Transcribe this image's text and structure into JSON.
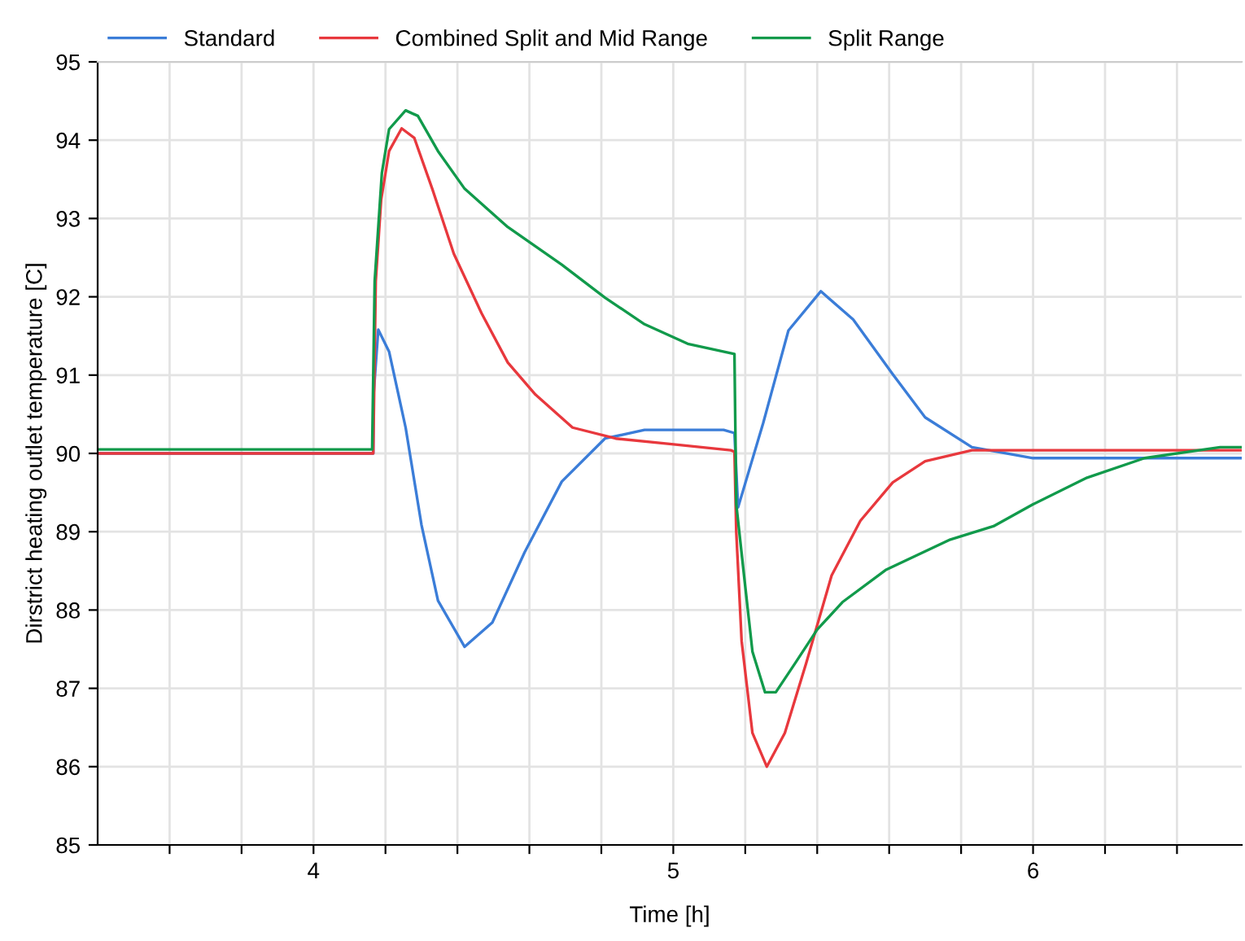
{
  "chart_data": {
    "type": "line",
    "xlabel": "Time [h]",
    "ylabel": "Dirstrict heating outlet temperature [C]",
    "xlim": [
      3.4,
      6.58
    ],
    "ylim": [
      85,
      95
    ],
    "xticks": [
      {
        "value": 3.6,
        "label": null
      },
      {
        "value": 3.8,
        "label": null
      },
      4,
      {
        "value": 4.2,
        "label": null
      },
      {
        "value": 4.4,
        "label": null
      },
      {
        "value": 4.6,
        "label": null
      },
      {
        "value": 4.8,
        "label": null
      },
      5,
      {
        "value": 5.2,
        "label": null
      },
      {
        "value": 5.4,
        "label": null
      },
      {
        "value": 5.6,
        "label": null
      },
      {
        "value": 5.8,
        "label": null
      },
      6,
      {
        "value": 6.2,
        "label": null
      },
      {
        "value": 6.4,
        "label": null
      }
    ],
    "yticks": [
      85,
      86,
      87,
      88,
      89,
      90,
      91,
      92,
      93,
      94,
      95
    ],
    "grid": true,
    "legend": "top",
    "line_style": "solid",
    "series": [
      {
        "name": "Standard",
        "color": "#3b7dd8",
        "x": [
          3.4,
          4.166,
          4.167,
          4.18,
          4.21,
          4.256,
          4.3,
          4.346,
          4.42,
          4.497,
          4.587,
          4.69,
          4.81,
          4.92,
          5.14,
          5.17,
          5.18,
          5.25,
          5.32,
          5.41,
          5.5,
          5.61,
          5.7,
          5.83,
          6.0,
          6.58
        ],
        "values": [
          90.0,
          90.0,
          90.75,
          91.58,
          91.3,
          90.33,
          89.09,
          88.12,
          87.53,
          87.84,
          88.74,
          89.64,
          90.19,
          90.3,
          90.3,
          90.26,
          89.31,
          90.39,
          91.57,
          92.07,
          91.71,
          91.01,
          90.46,
          90.08,
          89.94,
          89.94
        ]
      },
      {
        "name": "Combined Split and Mid Range",
        "color": "#e8383d",
        "x": [
          3.4,
          4.166,
          4.173,
          4.188,
          4.21,
          4.245,
          4.28,
          4.33,
          4.39,
          4.467,
          4.54,
          4.617,
          4.72,
          4.84,
          4.99,
          5.16,
          5.17,
          5.175,
          5.19,
          5.22,
          5.26,
          5.31,
          5.37,
          5.44,
          5.52,
          5.61,
          5.7,
          5.83,
          6.58
        ],
        "values": [
          90.0,
          90.0,
          92.2,
          93.24,
          93.86,
          94.15,
          94.03,
          93.38,
          92.55,
          91.79,
          91.16,
          90.75,
          90.33,
          90.19,
          90.12,
          90.04,
          90.02,
          89.0,
          87.6,
          86.43,
          86.0,
          86.43,
          87.33,
          88.44,
          89.14,
          89.63,
          89.9,
          90.04,
          90.04
        ]
      },
      {
        "name": "Split Range",
        "color": "#119a4b",
        "x": [
          3.4,
          4.163,
          4.17,
          4.19,
          4.21,
          4.256,
          4.29,
          4.346,
          4.42,
          4.54,
          4.69,
          4.81,
          4.92,
          5.04,
          5.17,
          5.175,
          5.2,
          5.22,
          5.255,
          5.285,
          5.34,
          5.4,
          5.47,
          5.59,
          5.77,
          5.89,
          6.0,
          6.15,
          6.31,
          6.52,
          6.58
        ],
        "values": [
          90.05,
          90.05,
          92.2,
          93.58,
          94.14,
          94.38,
          94.31,
          93.86,
          93.38,
          92.89,
          92.41,
          91.99,
          91.65,
          91.4,
          91.27,
          89.35,
          88.3,
          87.47,
          86.95,
          86.95,
          87.33,
          87.75,
          88.1,
          88.51,
          88.9,
          89.07,
          89.35,
          89.69,
          89.94,
          90.08,
          90.08
        ]
      }
    ]
  }
}
